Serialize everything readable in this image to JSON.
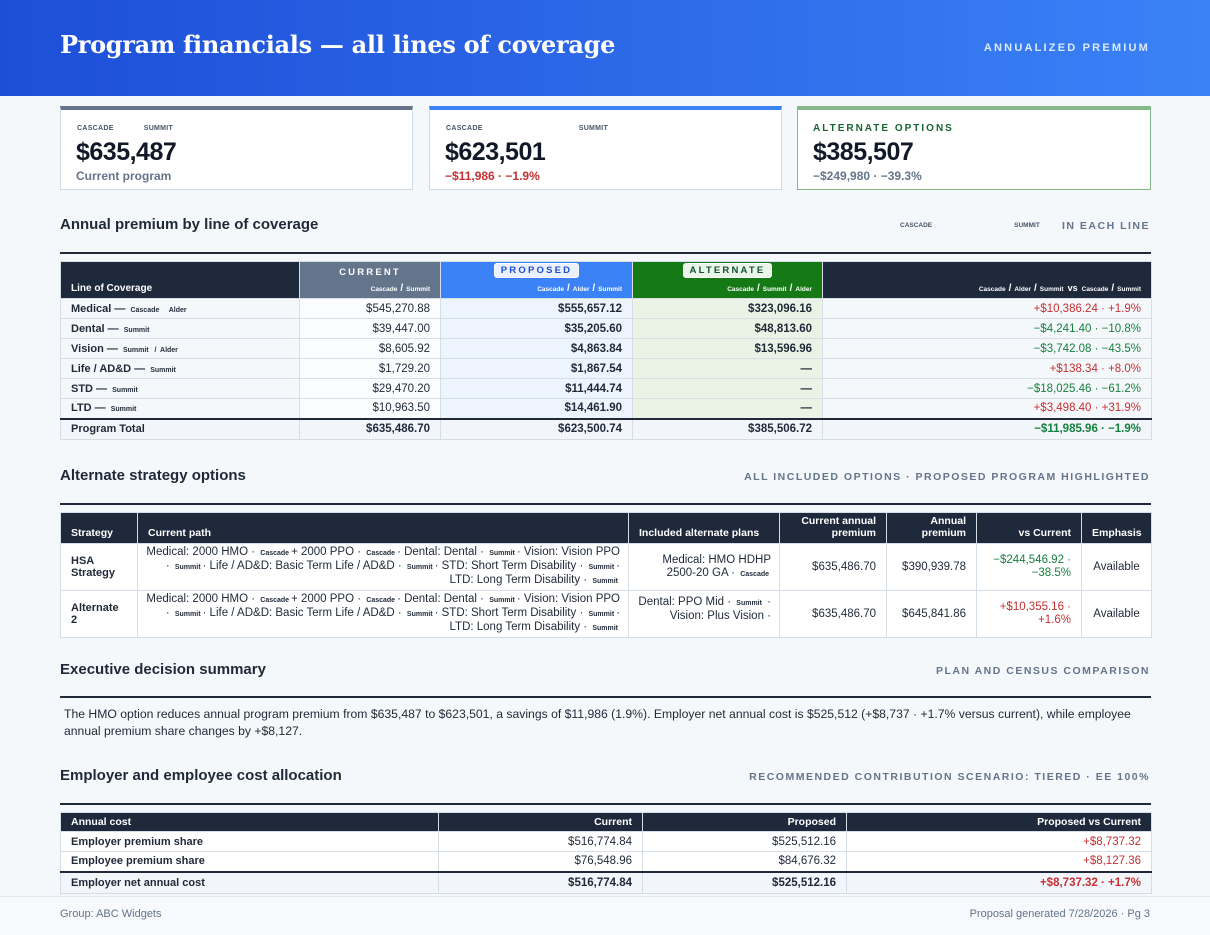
{
  "header": {
    "title": "Program financials — all lines of coverage",
    "tag": "ANNUALIZED PREMIUM"
  },
  "cards": [
    {
      "carriers": [
        "CASCADE",
        "SUMMIT"
      ],
      "amount": "$635,487",
      "sub": "Current program"
    },
    {
      "carriers": [
        "CASCADE",
        "SUMMIT"
      ],
      "amount": "$623,501",
      "sub": "−$11,986 · −1.9%"
    },
    {
      "label": "ALTERNATE OPTIONS",
      "amount": "$385,507",
      "sub": "−$249,980 · −39.3%"
    }
  ],
  "lines_section": {
    "title": "Annual premium by line of coverage",
    "carriers": [
      "CASCADE",
      "SUMMIT"
    ],
    "tag": "IN EACH LINE",
    "headers": {
      "line": "Line of Coverage",
      "current": "CURRENT",
      "current_sub": [
        "Cascade",
        "Summit"
      ],
      "proposed": "PROPOSED",
      "proposed_sub": [
        "Cascade",
        "Alder",
        "Summit"
      ],
      "alternate": "ALTERNATE",
      "alternate_sub": [
        "Cascade",
        "Summit",
        "Alder"
      ],
      "vs_left": [
        "Cascade",
        "Alder",
        "Summit"
      ],
      "vs_word": "vs",
      "vs_right": [
        "Cascade",
        "Summit"
      ]
    },
    "rows": [
      {
        "line": "Medical —",
        "carriers": "Cascade     Alder",
        "current": "$545,270.88",
        "proposed": "$555,657.12",
        "alternate": "$323,096.16",
        "vs": "+$10,386.24 · +1.9%",
        "dir": "pos"
      },
      {
        "line": "Dental —",
        "carriers": "Summit",
        "current": "$39,447.00",
        "proposed": "$35,205.60",
        "alternate": "$48,813.60",
        "vs": "−$4,241.40 · −10.8%",
        "dir": "neg"
      },
      {
        "line": "Vision —",
        "carriers": "Summit   /  Alder",
        "current": "$8,605.92",
        "proposed": "$4,863.84",
        "alternate": "$13,596.96",
        "vs": "−$3,742.08 · −43.5%",
        "dir": "neg"
      },
      {
        "line": "Life / AD&D —",
        "carriers": "Summit",
        "current": "$1,729.20",
        "proposed": "$1,867.54",
        "alternate": "—",
        "vs": "+$138.34 · +8.0%",
        "dir": "pos"
      },
      {
        "line": "STD —",
        "carriers": "Summit",
        "current": "$29,470.20",
        "proposed": "$11,444.74",
        "alternate": "—",
        "vs": "−$18,025.46 · −61.2%",
        "dir": "neg"
      },
      {
        "line": "LTD —",
        "carriers": "Summit",
        "current": "$10,963.50",
        "proposed": "$14,461.90",
        "alternate": "—",
        "vs": "+$3,498.40 · +31.9%",
        "dir": "pos"
      }
    ],
    "total": {
      "label": "Program Total",
      "current": "$635,486.70",
      "proposed": "$623,500.74",
      "alternate": "$385,506.72",
      "vs": "−$11,985.96 · −1.9%"
    }
  },
  "strategy_section": {
    "title": "Alternate strategy options",
    "tag": "ALL INCLUDED OPTIONS · PROPOSED PROGRAM HIGHLIGHTED",
    "headers": [
      "Strategy",
      "Current path",
      "Included alternate plans",
      "Current annual premium",
      "Annual premium",
      "vs Current",
      "Emphasis"
    ],
    "rows": [
      {
        "strategy": "HSA Strategy",
        "path_1": "Medical: 2000 HMO ·",
        "path_2": "+ 2000 PPO ·",
        "path_3": "· Dental: Dental ·",
        "path_4": "· Vision: Vision PPO ·",
        "path_5": "· Life / AD&D: Basic Term Life / AD&D ·",
        "path_6": "· STD: Short Term Disability ·",
        "path_7": "· LTD: Long Term Disability ·",
        "included_1": "Medical: HMO HDHP 2500-20 GA ·",
        "included_carrier": "Cascade",
        "current": "$635,486.70",
        "annual": "$390,939.78",
        "vs": "−$244,546.92 · −38.5%",
        "dir": "neg",
        "emphasis": "Available"
      },
      {
        "strategy": "Alternate 2",
        "path_1": "Medical: 2000 HMO ·",
        "path_2": "+ 2000 PPO ·",
        "path_3": "· Dental: Dental ·",
        "path_4": "· Vision: Vision PPO ·",
        "path_5": "· Life / AD&D: Basic Term Life / AD&D ·",
        "path_6": "· STD: Short Term Disability ·",
        "path_7": "· LTD: Long Term Disability ·",
        "included_1": "Dental: PPO Mid ·",
        "included_carrier": "Summit",
        "included_2": "· Vision: Plus Vision ·",
        "current": "$635,486.70",
        "annual": "$645,841.86",
        "vs": "+$10,355.16 · +1.6%",
        "dir": "pos",
        "emphasis": "Available"
      }
    ],
    "carrier_cascade": "Cascade",
    "carrier_summit": "Summit"
  },
  "summary_section": {
    "title": "Executive decision summary",
    "tag": "PLAN AND CENSUS COMPARISON",
    "text": "The HMO option reduces annual program premium from $635,487 to $623,501, a savings of $11,986 (1.9%). Employer net annual cost is $525,512 (+$8,737 · +1.7% versus current), while employee annual premium share changes by +$8,127."
  },
  "allocation_section": {
    "title": "Employer and employee cost allocation",
    "tag": "RECOMMENDED CONTRIBUTION SCENARIO: TIERED · EE 100%",
    "headers": [
      "Annual cost",
      "Current",
      "Proposed",
      "Proposed vs Current"
    ],
    "rows": [
      {
        "label": "Employer premium share",
        "current": "$516,774.84",
        "proposed": "$525,512.16",
        "vs": "+$8,737.32"
      },
      {
        "label": "Employee premium share",
        "current": "$76,548.96",
        "proposed": "$84,676.32",
        "vs": "+$8,127.36"
      }
    ],
    "total": {
      "label": "Employer net annual cost",
      "current": "$516,774.84",
      "proposed": "$525,512.16",
      "vs": "+$8,737.32 · +1.7%"
    }
  },
  "footer": {
    "left": "Group: ABC Widgets",
    "right": "Proposal generated 7/28/2026 · Pg 3"
  },
  "colors": {
    "header_gradient_start": "#1d4ed8",
    "header_gradient_end": "#3b82f6",
    "table_header": "#1e293b",
    "proposed": "#3b82f6",
    "alternate": "#157a15",
    "increase": "#c53030",
    "decrease": "#15803d"
  }
}
